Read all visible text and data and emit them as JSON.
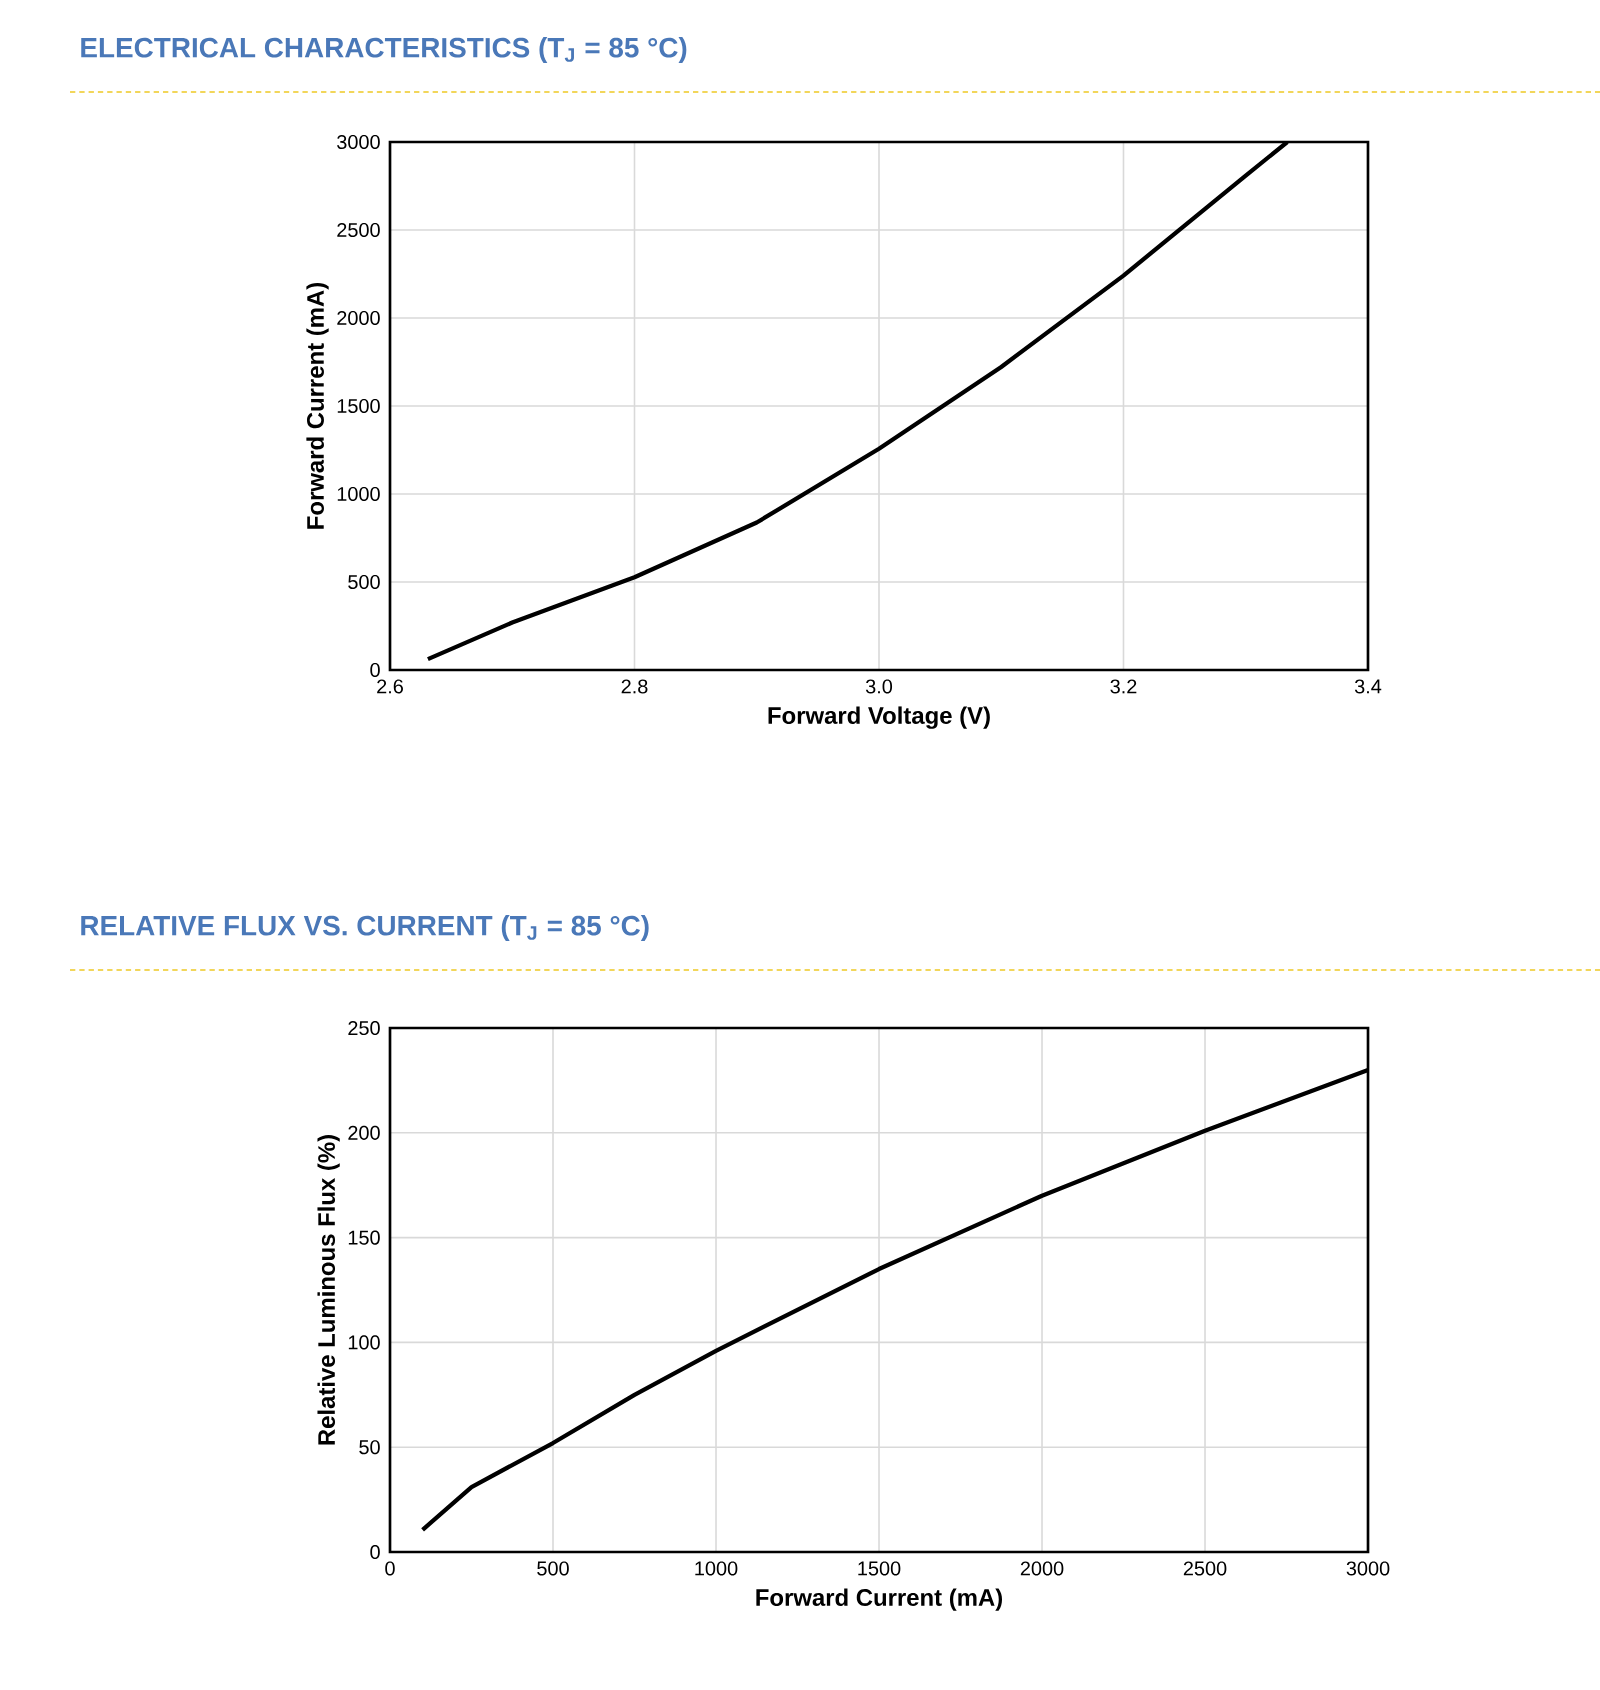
{
  "chart_data": [
    {
      "type": "line",
      "title": "ELECTRICAL CHARACTERISTICS (T$_{J}$ = 85 °C)",
      "xlabel": "Forward Voltage (V)",
      "ylabel": "Forward Current (mA)",
      "color": "#000000",
      "grid": true,
      "x": [
        2.631,
        2.7,
        2.8,
        2.9,
        3.0,
        3.1,
        3.2,
        3.3,
        3.334
      ],
      "values": [
        62,
        270,
        527,
        838,
        1257,
        1722,
        2241,
        2809,
        3000
      ],
      "xlim": [
        2.6,
        3.4
      ],
      "ylim": [
        0,
        3000
      ],
      "xticks": [
        2.6,
        2.8,
        {
          "value": 3.0,
          "label": "3.0"
        },
        3.2,
        3.4
      ],
      "yticks": [
        0,
        500,
        1000,
        1500,
        2000,
        2500,
        3000
      ]
    },
    {
      "type": "line",
      "title": "RELATIVE FLUX VS. CURRENT (T$_{J}$ = 85 °C)",
      "xlabel": "Forward Current (mA)",
      "ylabel": "Relative Luminous Flux (%)",
      "color": "#000000",
      "grid": true,
      "x": [
        100,
        250,
        500,
        750,
        1000,
        1500,
        2000,
        2500,
        3000
      ],
      "values": [
        10.6,
        31,
        52,
        75,
        96,
        135,
        170,
        201,
        230
      ],
      "xlim": [
        0,
        3000
      ],
      "ylim": [
        0,
        250
      ],
      "xticks": [
        0,
        500,
        1000,
        1500,
        2000,
        2500,
        3000
      ],
      "yticks": [
        0,
        50,
        100,
        150,
        200,
        250
      ]
    }
  ]
}
